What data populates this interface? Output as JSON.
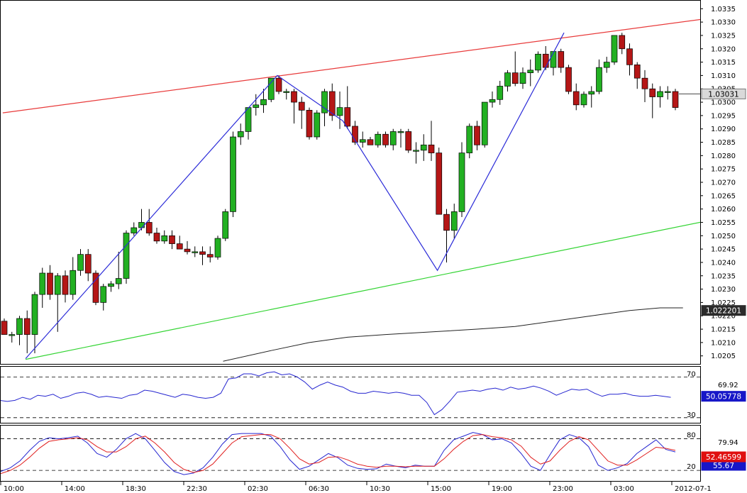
{
  "chart_data": [
    {
      "type": "candlestick",
      "instrument_panel": "price",
      "y_ticks": [
        "1.0335",
        "1.0330",
        "1.0325",
        "1.0320",
        "1.0315",
        "1.0310",
        "1.0305",
        "1.0300",
        "1.0295",
        "1.0290",
        "1.0285",
        "1.0280",
        "1.0275",
        "1.0270",
        "1.0265",
        "1.0260",
        "1.0255",
        "1.0250",
        "1.0245",
        "1.0240",
        "1.0235",
        "1.0230",
        "1.0225",
        "1.0220",
        "1.0215",
        "1.0210",
        "1.0205"
      ],
      "ylim": [
        1.0202,
        1.0338
      ],
      "x_ticks": [
        "10:00",
        "14:00",
        "18:30",
        "22:30",
        "02:30",
        "06:30",
        "10:30",
        "15:00",
        "19:00",
        "23:00",
        "03:00",
        "2012-07-1"
      ],
      "x_tick_index": [
        0,
        8,
        16,
        24,
        32,
        40,
        48,
        56,
        64,
        72,
        80,
        88
      ],
      "candles": [
        [
          1.0218,
          1.0219,
          1.0213,
          1.0213
        ],
        [
          1.0213,
          1.0214,
          1.021,
          1.0213
        ],
        [
          1.0213,
          1.022,
          1.0209,
          1.0219
        ],
        [
          1.0219,
          1.0222,
          1.0206,
          1.0213
        ],
        [
          1.0213,
          1.0229,
          1.0206,
          1.0228
        ],
        [
          1.0228,
          1.0238,
          1.0223,
          1.0236
        ],
        [
          1.0236,
          1.0239,
          1.0226,
          1.0228
        ],
        [
          1.0228,
          1.0236,
          1.0214,
          1.0235
        ],
        [
          1.0235,
          1.0237,
          1.0225,
          1.0228
        ],
        [
          1.0228,
          1.0242,
          1.0226,
          1.0237
        ],
        [
          1.0237,
          1.0245,
          1.0235,
          1.0243
        ],
        [
          1.0243,
          1.0245,
          1.0233,
          1.0236
        ],
        [
          1.0236,
          1.0237,
          1.0224,
          1.0225
        ],
        [
          1.0225,
          1.0232,
          1.0222,
          1.0231
        ],
        [
          1.0231,
          1.0233,
          1.0229,
          1.0232
        ],
        [
          1.0232,
          1.0244,
          1.023,
          1.0234
        ],
        [
          1.0234,
          1.0252,
          1.0232,
          1.0251
        ],
        [
          1.0251,
          1.0255,
          1.025,
          1.0253
        ],
        [
          1.0253,
          1.026,
          1.0252,
          1.0255
        ],
        [
          1.0255,
          1.026,
          1.025,
          1.0251
        ],
        [
          1.0251,
          1.0253,
          1.0247,
          1.0248
        ],
        [
          1.0248,
          1.0252,
          1.0247,
          1.025
        ],
        [
          1.025,
          1.0252,
          1.0245,
          1.0247
        ],
        [
          1.0247,
          1.025,
          1.0245,
          1.0245
        ],
        [
          1.0245,
          1.0248,
          1.0243,
          1.0244
        ],
        [
          1.0244,
          1.0246,
          1.0242,
          1.0244
        ],
        [
          1.0244,
          1.0246,
          1.0239,
          1.0243
        ],
        [
          1.0243,
          1.0246,
          1.024,
          1.0242
        ],
        [
          1.0242,
          1.025,
          1.0241,
          1.0249
        ],
        [
          1.0249,
          1.026,
          1.0248,
          1.0259
        ],
        [
          1.0259,
          1.0289,
          1.0257,
          1.0287
        ],
        [
          1.0287,
          1.0292,
          1.0284,
          1.0289
        ],
        [
          1.0289,
          1.0298,
          1.0286,
          1.0298
        ],
        [
          1.0298,
          1.0303,
          1.0295,
          1.0299
        ],
        [
          1.0299,
          1.0305,
          1.0296,
          1.0301
        ],
        [
          1.0301,
          1.0309,
          1.03,
          1.0309
        ],
        [
          1.0309,
          1.031,
          1.0303,
          1.0304
        ],
        [
          1.0304,
          1.0305,
          1.0301,
          1.0304
        ],
        [
          1.0304,
          1.0305,
          1.0292,
          1.03
        ],
        [
          1.03,
          1.0302,
          1.029,
          1.0297
        ],
        [
          1.0297,
          1.0298,
          1.0286,
          1.0287
        ],
        [
          1.0287,
          1.0297,
          1.0286,
          1.0296
        ],
        [
          1.0296,
          1.0305,
          1.0291,
          1.0304
        ],
        [
          1.0304,
          1.0307,
          1.0293,
          1.0295
        ],
        [
          1.0295,
          1.0304,
          1.029,
          1.0298
        ],
        [
          1.0298,
          1.0306,
          1.029,
          1.0291
        ],
        [
          1.0291,
          1.0293,
          1.0284,
          1.0285
        ],
        [
          1.0285,
          1.0289,
          1.0283,
          1.0286
        ],
        [
          1.0286,
          1.0287,
          1.0284,
          1.0284
        ],
        [
          1.0284,
          1.0289,
          1.0283,
          1.0288
        ],
        [
          1.0288,
          1.0289,
          1.0283,
          1.0284
        ],
        [
          1.0284,
          1.029,
          1.0282,
          1.0289
        ],
        [
          1.0289,
          1.029,
          1.0283,
          1.0289
        ],
        [
          1.0289,
          1.029,
          1.0281,
          1.0282
        ],
        [
          1.0282,
          1.0285,
          1.0277,
          1.0282
        ],
        [
          1.0282,
          1.0288,
          1.0278,
          1.0284
        ],
        [
          1.0284,
          1.0293,
          1.0278,
          1.0281
        ],
        [
          1.0281,
          1.0283,
          1.0258,
          1.0258
        ],
        [
          1.0258,
          1.026,
          1.024,
          1.0252
        ],
        [
          1.0252,
          1.0262,
          1.0249,
          1.0259
        ],
        [
          1.0259,
          1.0285,
          1.0257,
          1.0281
        ],
        [
          1.0281,
          1.0292,
          1.0279,
          1.0291
        ],
        [
          1.0291,
          1.0293,
          1.0282,
          1.0284
        ],
        [
          1.0284,
          1.03,
          1.0283,
          1.03
        ],
        [
          1.03,
          1.0304,
          1.0298,
          1.0301
        ],
        [
          1.0301,
          1.0308,
          1.0299,
          1.0306
        ],
        [
          1.0306,
          1.0312,
          1.0304,
          1.0311
        ],
        [
          1.0311,
          1.0319,
          1.0306,
          1.0307
        ],
        [
          1.0307,
          1.0313,
          1.0305,
          1.0311
        ],
        [
          1.0311,
          1.0316,
          1.0306,
          1.0312
        ],
        [
          1.0312,
          1.0319,
          1.0311,
          1.0318
        ],
        [
          1.0318,
          1.0321,
          1.0312,
          1.0313
        ],
        [
          1.0313,
          1.0319,
          1.031,
          1.0319
        ],
        [
          1.0319,
          1.032,
          1.0311,
          1.0313
        ],
        [
          1.0313,
          1.0314,
          1.0303,
          1.0304
        ],
        [
          1.0304,
          1.0307,
          1.0297,
          1.0299
        ],
        [
          1.0299,
          1.0304,
          1.0298,
          1.0303
        ],
        [
          1.0303,
          1.0306,
          1.0298,
          1.0304
        ],
        [
          1.0304,
          1.0316,
          1.0303,
          1.0313
        ],
        [
          1.0313,
          1.0317,
          1.0311,
          1.0315
        ],
        [
          1.0315,
          1.0325,
          1.0314,
          1.0325
        ],
        [
          1.0325,
          1.0326,
          1.0318,
          1.032
        ],
        [
          1.032,
          1.0322,
          1.031,
          1.0314
        ],
        [
          1.0314,
          1.0315,
          1.0305,
          1.0309
        ],
        [
          1.0309,
          1.0312,
          1.03,
          1.0305
        ],
        [
          1.0305,
          1.0307,
          1.0294,
          1.0302
        ],
        [
          1.0302,
          1.0306,
          1.0298,
          1.0304
        ],
        [
          1.0304,
          1.0306,
          1.0301,
          1.0304
        ],
        [
          1.0304,
          1.0305,
          1.0297,
          1.0298
        ]
      ],
      "candle_colors": {
        "up": "#22b022",
        "down": "#b51616"
      },
      "resistance_line": {
        "color": "#e83a3a",
        "from": {
          "x": -0.2,
          "y": 1.0296
        },
        "to": {
          "x": 95,
          "y": 1.03324
        }
      },
      "support_line": {
        "color": "#32d432",
        "from": {
          "x": 2.8,
          "y": 1.02037
        },
        "to": {
          "x": 95,
          "y": 1.02572
        }
      },
      "zigzag": {
        "color": "#2b2bd8",
        "points": [
          [
            2.8,
            1.0204
          ],
          [
            35.8,
            1.031
          ],
          [
            44.4,
            1.0293
          ],
          [
            56.8,
            1.0237
          ],
          [
            73.4,
            1.0326
          ]
        ]
      },
      "moving_average": {
        "color": "#222222",
        "points": [
          [
            28.7,
            1.0203
          ],
          [
            35,
            1.0207
          ],
          [
            40,
            1.021
          ],
          [
            45,
            1.0212
          ],
          [
            50,
            1.0213
          ],
          [
            56,
            1.0214
          ],
          [
            62,
            1.0215
          ],
          [
            67,
            1.0216
          ],
          [
            72,
            1.0218
          ],
          [
            77,
            1.022
          ],
          [
            82,
            1.0222
          ],
          [
            86,
            1.0223
          ],
          [
            89,
            1.0223
          ]
        ]
      },
      "price_label": "1.03031",
      "ma_label": "1.022201"
    },
    {
      "type": "line",
      "instrument_panel": "rsi",
      "ylim": [
        25,
        80
      ],
      "levels": [
        70,
        30
      ],
      "level_labels": [
        "70",
        "30"
      ],
      "series": [
        {
          "color": "#2626d0",
          "values": [
            47,
            46,
            47,
            50,
            48,
            52,
            51,
            53,
            49,
            51,
            54,
            55,
            53,
            50,
            51,
            50,
            49,
            52,
            53,
            57,
            56,
            54,
            52,
            50,
            53,
            52,
            50,
            49,
            50,
            54,
            68,
            69,
            73,
            73,
            71,
            74,
            75,
            72,
            73,
            70,
            65,
            58,
            62,
            65,
            62,
            60,
            56,
            54,
            54,
            56,
            55,
            54,
            55,
            54,
            52,
            52,
            45,
            33,
            38,
            46,
            55,
            56,
            57,
            56,
            58,
            59,
            57,
            60,
            58,
            59,
            61,
            59,
            56,
            52,
            55,
            58,
            57,
            58,
            54,
            51,
            53,
            53,
            54,
            52,
            51,
            51,
            52,
            51,
            50
          ]
        }
      ],
      "value_label": "69.92",
      "current_label": "50.05778"
    },
    {
      "type": "line",
      "instrument_panel": "stochastic",
      "ylim": [
        0,
        105
      ],
      "levels": [
        80,
        20
      ],
      "level_labels": [
        "80",
        "20"
      ],
      "series": [
        {
          "color": "#2626d0",
          "values": [
            18,
            25,
            38,
            58,
            75,
            82,
            80,
            82,
            85,
            72,
            52,
            45,
            60,
            80,
            90,
            80,
            58,
            35,
            18,
            12,
            15,
            25,
            45,
            70,
            88,
            90,
            90,
            90,
            85,
            65,
            40,
            22,
            28,
            40,
            52,
            44,
            30,
            24,
            22,
            23,
            32,
            28,
            25,
            30,
            28,
            28,
            58,
            78,
            85,
            92,
            88,
            78,
            80,
            72,
            52,
            28,
            20,
            50,
            78,
            88,
            82,
            65,
            30,
            20,
            25,
            33,
            52,
            65,
            78,
            60,
            55
          ]
        },
        {
          "color": "#e02020",
          "values": [
            14,
            20,
            30,
            45,
            62,
            75,
            78,
            80,
            82,
            78,
            65,
            55,
            55,
            65,
            80,
            85,
            72,
            55,
            35,
            22,
            16,
            20,
            32,
            52,
            72,
            84,
            86,
            88,
            88,
            80,
            62,
            42,
            32,
            35,
            45,
            46,
            40,
            32,
            28,
            26,
            28,
            28,
            27,
            28,
            28,
            28,
            42,
            60,
            75,
            86,
            88,
            84,
            82,
            78,
            66,
            45,
            32,
            38,
            58,
            75,
            84,
            78,
            58,
            38,
            30,
            30,
            40,
            52,
            64,
            62,
            58
          ]
        }
      ],
      "value_label": "79.94",
      "current_label": "52.46599",
      "secondary_label": "55.67"
    }
  ]
}
